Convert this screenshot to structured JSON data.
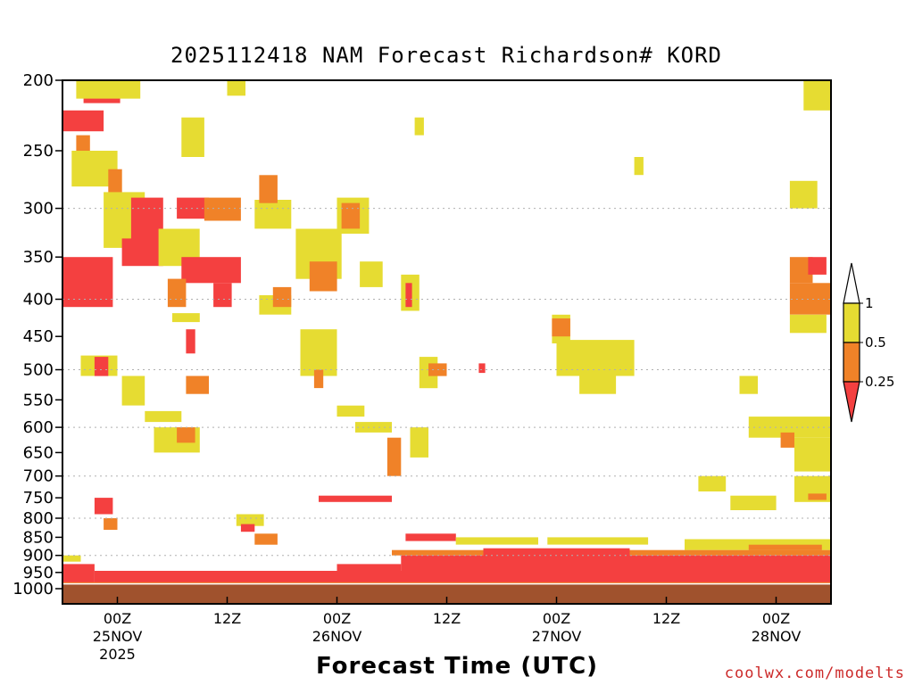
{
  "chart_data": {
    "type": "heatmap",
    "title": "2025112418 NAM Forecast Richardson# KORD",
    "xlabel": "Forecast Time (UTC)",
    "ylabel": "",
    "credit": "coolwx.com/modelts",
    "y_axis": {
      "type": "log-pressure",
      "range_hPa": [
        200,
        1000
      ],
      "ticks": [
        200,
        250,
        300,
        350,
        400,
        450,
        500,
        550,
        600,
        650,
        700,
        750,
        800,
        850,
        900,
        950,
        1000
      ],
      "tick_labels": [
        "200",
        "250",
        "300",
        "350",
        "400",
        "450",
        "500",
        "550",
        "600",
        "650",
        "700",
        "750",
        "800",
        "850",
        "900",
        "950",
        "1000"
      ],
      "gridlines": [
        300,
        400,
        500,
        600,
        700,
        800,
        900
      ]
    },
    "x_axis": {
      "range_forecast_hours": [
        0,
        84
      ],
      "ticks": [
        {
          "hour": 6,
          "label": "00Z",
          "date": "25NOV",
          "year": "2025"
        },
        {
          "hour": 18,
          "label": "12Z",
          "date": "",
          "year": ""
        },
        {
          "hour": 30,
          "label": "00Z",
          "date": "26NOV",
          "year": ""
        },
        {
          "hour": 42,
          "label": "12Z",
          "date": "",
          "year": ""
        },
        {
          "hour": 54,
          "label": "00Z",
          "date": "27NOV",
          "year": ""
        },
        {
          "hour": 66,
          "label": "12Z",
          "date": "",
          "year": ""
        },
        {
          "hour": 78,
          "label": "00Z",
          "date": "28NOV",
          "year": ""
        }
      ]
    },
    "legend": {
      "placement": "right",
      "levels": [
        "1",
        "0.5",
        "0.25"
      ],
      "bins": [
        {
          "range": "<0.25",
          "color": "#f44040"
        },
        {
          "range": "0.25-0.5",
          "color": "#f08228"
        },
        {
          "range": "0.5-1",
          "color": "#e6dc32"
        },
        {
          "range": ">1",
          "color": "#ffffff"
        }
      ]
    },
    "ground_color": "#a0522d",
    "surface_pressure_hPa": 985,
    "regions": [
      {
        "bin": "<0.25",
        "t": [
          0,
          4.5
        ],
        "p": [
          220,
          235
        ]
      },
      {
        "bin": "<0.25",
        "t": [
          2.3,
          6.3
        ],
        "p": [
          203,
          215
        ]
      },
      {
        "bin": "0.5-1",
        "t": [
          1.5,
          8.5
        ],
        "p": [
          200,
          212
        ]
      },
      {
        "bin": "0.5-1",
        "t": [
          18,
          20
        ],
        "p": [
          200,
          210
        ]
      },
      {
        "bin": "0.25-0.5",
        "t": [
          1.5,
          3
        ],
        "p": [
          238,
          250
        ]
      },
      {
        "bin": "0.5-1",
        "t": [
          1,
          6
        ],
        "p": [
          250,
          280
        ]
      },
      {
        "bin": "0.25-0.5",
        "t": [
          5,
          6.5
        ],
        "p": [
          265,
          285
        ]
      },
      {
        "bin": "0.5-1",
        "t": [
          13,
          15.5
        ],
        "p": [
          225,
          255
        ]
      },
      {
        "bin": "0.5-1",
        "t": [
          4.5,
          9
        ],
        "p": [
          285,
          340
        ]
      },
      {
        "bin": "<0.25",
        "t": [
          7.5,
          11
        ],
        "p": [
          290,
          345
        ]
      },
      {
        "bin": "<0.25",
        "t": [
          0,
          5.5
        ],
        "p": [
          350,
          410
        ]
      },
      {
        "bin": "<0.25",
        "t": [
          6.5,
          11
        ],
        "p": [
          330,
          360
        ]
      },
      {
        "bin": "<0.25",
        "t": [
          12.5,
          16
        ],
        "p": [
          290,
          310
        ]
      },
      {
        "bin": "0.25-0.5",
        "t": [
          15.5,
          19.5
        ],
        "p": [
          290,
          312
        ]
      },
      {
        "bin": "0.5-1",
        "t": [
          10.5,
          15
        ],
        "p": [
          320,
          360
        ]
      },
      {
        "bin": "<0.25",
        "t": [
          13,
          19.5
        ],
        "p": [
          350,
          380
        ]
      },
      {
        "bin": "<0.25",
        "t": [
          16.5,
          18.5
        ],
        "p": [
          380,
          410
        ]
      },
      {
        "bin": "0.25-0.5",
        "t": [
          11.5,
          13.5
        ],
        "p": [
          375,
          410
        ]
      },
      {
        "bin": "0.5-1",
        "t": [
          21,
          25
        ],
        "p": [
          292,
          320
        ]
      },
      {
        "bin": "0.25-0.5",
        "t": [
          21.5,
          23.5
        ],
        "p": [
          270,
          295
        ]
      },
      {
        "bin": "0.5-1",
        "t": [
          25.5,
          30.5
        ],
        "p": [
          320,
          375
        ]
      },
      {
        "bin": "0.5-1",
        "t": [
          30,
          33.5
        ],
        "p": [
          290,
          325
        ]
      },
      {
        "bin": "0.25-0.5",
        "t": [
          30.5,
          32.5
        ],
        "p": [
          295,
          320
        ]
      },
      {
        "bin": "0.25-0.5",
        "t": [
          27,
          30
        ],
        "p": [
          355,
          390
        ]
      },
      {
        "bin": "0.5-1",
        "t": [
          21.5,
          25
        ],
        "p": [
          395,
          420
        ]
      },
      {
        "bin": "0.25-0.5",
        "t": [
          23,
          25
        ],
        "p": [
          385,
          410
        ]
      },
      {
        "bin": "0.5-1",
        "t": [
          32.5,
          35
        ],
        "p": [
          355,
          385
        ]
      },
      {
        "bin": "0.5-1",
        "t": [
          37,
          39
        ],
        "p": [
          370,
          415
        ]
      },
      {
        "bin": "<0.25",
        "t": [
          37.5,
          38.2
        ],
        "p": [
          380,
          410
        ]
      },
      {
        "bin": "0.5-1",
        "t": [
          12,
          15
        ],
        "p": [
          418,
          430
        ]
      },
      {
        "bin": "<0.25",
        "t": [
          13.5,
          14.5
        ],
        "p": [
          440,
          475
        ]
      },
      {
        "bin": "0.5-1",
        "t": [
          2,
          6
        ],
        "p": [
          478,
          510
        ]
      },
      {
        "bin": "<0.25",
        "t": [
          3.5,
          5
        ],
        "p": [
          480,
          510
        ]
      },
      {
        "bin": "0.5-1",
        "t": [
          6.5,
          9
        ],
        "p": [
          510,
          560
        ]
      },
      {
        "bin": "0.5-1",
        "t": [
          9,
          13
        ],
        "p": [
          570,
          590
        ]
      },
      {
        "bin": "0.25-0.5",
        "t": [
          13.5,
          16
        ],
        "p": [
          510,
          540
        ]
      },
      {
        "bin": "0.5-1",
        "t": [
          10,
          15
        ],
        "p": [
          600,
          650
        ]
      },
      {
        "bin": "0.25-0.5",
        "t": [
          12.5,
          14.5
        ],
        "p": [
          600,
          630
        ]
      },
      {
        "bin": "0.5-1",
        "t": [
          26,
          30
        ],
        "p": [
          440,
          510
        ]
      },
      {
        "bin": "0.25-0.5",
        "t": [
          27.5,
          28.5
        ],
        "p": [
          500,
          530
        ]
      },
      {
        "bin": "0.5-1",
        "t": [
          30,
          33
        ],
        "p": [
          560,
          580
        ]
      },
      {
        "bin": "0.5-1",
        "t": [
          32,
          36
        ],
        "p": [
          590,
          610
        ]
      },
      {
        "bin": "0.5-1",
        "t": [
          38,
          40
        ],
        "p": [
          600,
          660
        ]
      },
      {
        "bin": "0.25-0.5",
        "t": [
          35.5,
          37
        ],
        "p": [
          620,
          700
        ]
      },
      {
        "bin": "0.5-1",
        "t": [
          39,
          41
        ],
        "p": [
          480,
          530
        ]
      },
      {
        "bin": "0.25-0.5",
        "t": [
          40,
          42
        ],
        "p": [
          490,
          510
        ]
      },
      {
        "bin": "<0.25",
        "t": [
          45.5,
          46.2
        ],
        "p": [
          490,
          505
        ]
      },
      {
        "bin": "0.5-1",
        "t": [
          53.5,
          55.5
        ],
        "p": [
          420,
          460
        ]
      },
      {
        "bin": "0.25-0.5",
        "t": [
          53.5,
          55.5
        ],
        "p": [
          425,
          450
        ]
      },
      {
        "bin": "0.5-1",
        "t": [
          54,
          62.5
        ],
        "p": [
          455,
          510
        ]
      },
      {
        "bin": "0.5-1",
        "t": [
          56.5,
          60.5
        ],
        "p": [
          505,
          540
        ]
      },
      {
        "bin": "0.5-1",
        "t": [
          74,
          76
        ],
        "p": [
          510,
          540
        ]
      },
      {
        "bin": "0.5-1",
        "t": [
          75,
          84
        ],
        "p": [
          580,
          620
        ]
      },
      {
        "bin": "0.5-1",
        "t": [
          80,
          84
        ],
        "p": [
          620,
          690
        ]
      },
      {
        "bin": "0.25-0.5",
        "t": [
          78.5,
          80
        ],
        "p": [
          610,
          640
        ]
      },
      {
        "bin": "0.25-0.5",
        "t": [
          79.5,
          82
        ],
        "p": [
          350,
          380
        ]
      },
      {
        "bin": "<0.25",
        "t": [
          81.5,
          83.5
        ],
        "p": [
          350,
          370
        ]
      },
      {
        "bin": "0.25-0.5",
        "t": [
          79.5,
          84
        ],
        "p": [
          380,
          420
        ]
      },
      {
        "bin": "0.5-1",
        "t": [
          79.5,
          83.5
        ],
        "p": [
          420,
          445
        ]
      },
      {
        "bin": "0.5-1",
        "t": [
          81,
          84
        ],
        "p": [
          200,
          220
        ]
      },
      {
        "bin": "0.5-1",
        "t": [
          79.5,
          82.5
        ],
        "p": [
          275,
          300
        ]
      },
      {
        "bin": "0.5-1",
        "t": [
          62.5,
          63.5
        ],
        "p": [
          255,
          270
        ]
      },
      {
        "bin": "0.5-1",
        "t": [
          38.5,
          39.5
        ],
        "p": [
          225,
          238
        ]
      },
      {
        "bin": "0.5-1",
        "t": [
          73,
          78
        ],
        "p": [
          745,
          780
        ]
      },
      {
        "bin": "0.5-1",
        "t": [
          80,
          84
        ],
        "p": [
          700,
          760
        ]
      },
      {
        "bin": "0.25-0.5",
        "t": [
          81.5,
          83.5
        ],
        "p": [
          740,
          755
        ]
      },
      {
        "bin": "0.5-1",
        "t": [
          69.5,
          72.5
        ],
        "p": [
          700,
          735
        ]
      },
      {
        "bin": "<0.25",
        "t": [
          3.5,
          5.5
        ],
        "p": [
          750,
          790
        ]
      },
      {
        "bin": "0.25-0.5",
        "t": [
          4.5,
          6
        ],
        "p": [
          800,
          830
        ]
      },
      {
        "bin": "0.5-1",
        "t": [
          19,
          22
        ],
        "p": [
          790,
          820
        ]
      },
      {
        "bin": "<0.25",
        "t": [
          19.5,
          21
        ],
        "p": [
          815,
          835
        ]
      },
      {
        "bin": "0.25-0.5",
        "t": [
          21,
          23.5
        ],
        "p": [
          840,
          870
        ]
      },
      {
        "bin": "<0.25",
        "t": [
          28,
          36
        ],
        "p": [
          745,
          760
        ]
      },
      {
        "bin": "<0.25",
        "t": [
          37.5,
          43
        ],
        "p": [
          840,
          860
        ]
      },
      {
        "bin": "0.5-1",
        "t": [
          43,
          52
        ],
        "p": [
          850,
          870
        ]
      },
      {
        "bin": "0.5-1",
        "t": [
          53,
          64
        ],
        "p": [
          850,
          870
        ]
      },
      {
        "bin": "0.5-1",
        "t": [
          68,
          84
        ],
        "p": [
          855,
          885
        ]
      },
      {
        "bin": "0.25-0.5",
        "t": [
          75,
          83
        ],
        "p": [
          870,
          885
        ]
      },
      {
        "bin": "0.5-1",
        "t": [
          0,
          2
        ],
        "p": [
          900,
          918
        ]
      },
      {
        "bin": "0.25-0.5",
        "t": [
          36,
          84
        ],
        "p": [
          885,
          900
        ]
      },
      {
        "bin": "<0.25",
        "t": [
          37,
          84
        ],
        "p": [
          900,
          945
        ]
      },
      {
        "bin": "<0.25",
        "t": [
          46,
          62
        ],
        "p": [
          880,
          905
        ]
      },
      {
        "bin": "<0.25",
        "t": [
          30,
          37
        ],
        "p": [
          925,
          945
        ]
      },
      {
        "bin": "<0.25",
        "t": [
          0,
          3.5
        ],
        "p": [
          925,
          985
        ]
      },
      {
        "bin": "<0.25",
        "t": [
          3.5,
          84
        ],
        "p": [
          945,
          985
        ]
      },
      {
        "bin": "0.25-0.5",
        "t": [
          0,
          84
        ],
        "p": [
          980,
          987
        ]
      }
    ]
  }
}
